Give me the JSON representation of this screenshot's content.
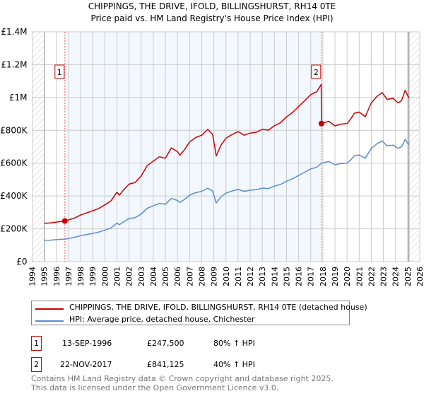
{
  "chart_data": {
    "type": "line",
    "title": "CHIPPINGS, THE DRIVE, IFOLD, BILLINGSHURST, RH14 0TE",
    "subtitle": "Price paid vs. HM Land Registry's House Price Index (HPI)",
    "xlabel": "",
    "ylabel": "",
    "xlim": [
      1994,
      2026
    ],
    "ylim": [
      0,
      1400000
    ],
    "grid": true,
    "x_ticks": [
      "1994",
      "1995",
      "1996",
      "1997",
      "1998",
      "1999",
      "2000",
      "2001",
      "2002",
      "2003",
      "2004",
      "2005",
      "2006",
      "2007",
      "2008",
      "2009",
      "2010",
      "2011",
      "2012",
      "2013",
      "2014",
      "2015",
      "2016",
      "2017",
      "2018",
      "2019",
      "2020",
      "2021",
      "2022",
      "2023",
      "2024",
      "2025",
      "2026"
    ],
    "y_ticks": [
      {
        "v": 0,
        "label": "£0"
      },
      {
        "v": 200000,
        "label": "£200K"
      },
      {
        "v": 400000,
        "label": "£400K"
      },
      {
        "v": 600000,
        "label": "£600K"
      },
      {
        "v": 800000,
        "label": "£800K"
      },
      {
        "v": 1000000,
        "label": "£1M"
      },
      {
        "v": 1200000,
        "label": "£1.2M"
      },
      {
        "v": 1400000,
        "label": "£1.4M"
      }
    ],
    "data_range": [
      1995,
      2025.1
    ],
    "highlight_range": [
      1996.7,
      2017.88
    ],
    "series": [
      {
        "name": "CHIPPINGS, THE DRIVE, IFOLD, BILLINGSHURST, RH14 0TE (detached house)",
        "color": "#cc0000",
        "x": [
          1995,
          1995.5,
          1996,
          1996.7,
          1997,
          1997.5,
          1998,
          1998.5,
          1999,
          1999.5,
          2000,
          2000.5,
          2001,
          2001.2,
          2001.6,
          2002,
          2002.5,
          2003,
          2003.5,
          2004,
          2004.5,
          2005,
          2005.5,
          2006,
          2006.2,
          2006.6,
          2007,
          2007.5,
          2008,
          2008.5,
          2008.9,
          2009.2,
          2009.6,
          2010,
          2010.5,
          2011,
          2011.5,
          2012,
          2012.5,
          2013,
          2013.5,
          2014,
          2014.5,
          2015,
          2015.5,
          2016,
          2016.5,
          2017,
          2017.5,
          2017.87,
          2017.88,
          2018.5,
          2019,
          2019.5,
          2020,
          2020.3,
          2020.6,
          2021,
          2021.5,
          2022,
          2022.5,
          2022.9,
          2023.3,
          2023.8,
          2024.2,
          2024.5,
          2024.8,
          2025.1
        ],
        "y": [
          234000,
          236000,
          241000,
          247500,
          254000,
          266000,
          284000,
          297000,
          310000,
          324000,
          346000,
          369000,
          423000,
          405000,
          441000,
          472000,
          482000,
          522000,
          585000,
          612000,
          639000,
          630000,
          693000,
          670000,
          648000,
          684000,
          729000,
          756000,
          770000,
          806000,
          774000,
          644000,
          711000,
          752000,
          774000,
          792000,
          770000,
          783000,
          788000,
          806000,
          801000,
          828000,
          846000,
          882000,
          909000,
          945000,
          981000,
          1017000,
          1035000,
          1080000,
          841125,
          855000,
          827000,
          838000,
          841000,
          869000,
          904000,
          911000,
          883000,
          967000,
          1009000,
          1030000,
          988000,
          995000,
          967000,
          981000,
          1044000,
          995000
        ]
      },
      {
        "name": "HPI: Average price, detached house, Chichester",
        "color": "#5b8bd0",
        "x": [
          1995,
          1995.5,
          1996,
          1996.7,
          1997,
          1997.5,
          1998,
          1998.5,
          1999,
          1999.5,
          2000,
          2000.5,
          2001,
          2001.2,
          2001.6,
          2002,
          2002.5,
          2003,
          2003.5,
          2004,
          2004.5,
          2005,
          2005.5,
          2006,
          2006.2,
          2006.6,
          2007,
          2007.5,
          2008,
          2008.5,
          2008.9,
          2009.2,
          2009.6,
          2010,
          2010.5,
          2011,
          2011.5,
          2012,
          2012.5,
          2013,
          2013.5,
          2014,
          2014.5,
          2015,
          2015.5,
          2016,
          2016.5,
          2017,
          2017.5,
          2017.88,
          2018.5,
          2019,
          2019.5,
          2020,
          2020.3,
          2020.6,
          2021,
          2021.5,
          2022,
          2022.5,
          2022.9,
          2023.3,
          2023.8,
          2024.2,
          2024.5,
          2024.8,
          2025.1
        ],
        "y": [
          130000,
          131000,
          134000,
          137500,
          141000,
          148000,
          158000,
          165000,
          172000,
          180000,
          192000,
          205000,
          235000,
          225000,
          245000,
          262000,
          268000,
          290000,
          325000,
          340000,
          355000,
          350000,
          385000,
          372000,
          360000,
          380000,
          405000,
          420000,
          428000,
          448000,
          430000,
          358000,
          395000,
          418000,
          430000,
          440000,
          428000,
          435000,
          438000,
          448000,
          445000,
          460000,
          470000,
          490000,
          505000,
          525000,
          545000,
          565000,
          575000,
          600000,
          610000,
          590000,
          598000,
          600000,
          620000,
          645000,
          650000,
          630000,
          690000,
          720000,
          735000,
          705000,
          710000,
          690000,
          700000,
          745000,
          710000
        ]
      }
    ],
    "sales": [
      {
        "label": "1",
        "x": 1996.7,
        "y": 247500,
        "date": "13-SEP-1996",
        "price": "£247,500",
        "hpi": "80% ↑ HPI"
      },
      {
        "label": "2",
        "x": 2017.88,
        "y": 841125,
        "date": "22-NOV-2017",
        "price": "£841,125",
        "hpi": "40% ↑ HPI"
      }
    ],
    "legend_position": "below"
  },
  "footer": {
    "line1": "Contains HM Land Registry data © Crown copyright and database right 2025.",
    "line2": "This data is licensed under the Open Government Licence v3.0."
  }
}
